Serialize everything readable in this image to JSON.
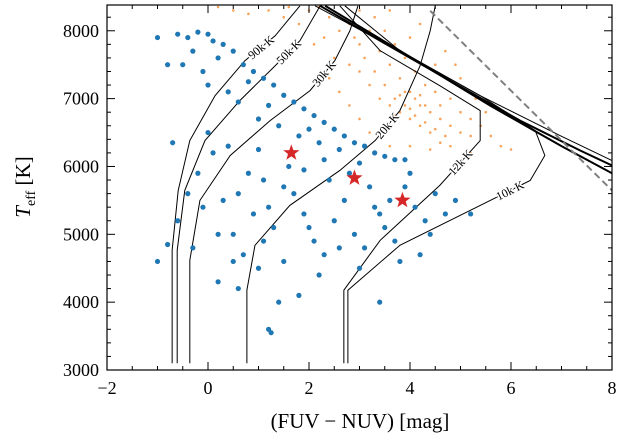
{
  "chart_data": {
    "type": "scatter",
    "xlabel": "(FUV − NUV) [mag]",
    "ylabel": [
      "T",
      "eff",
      " [K]"
    ],
    "xlim": [
      -2,
      8
    ],
    "ylim": [
      3000,
      8380
    ],
    "xticks": [
      {
        "value": -2,
        "label": "−2"
      },
      0,
      2,
      4,
      6,
      8
    ],
    "yticks": [
      3000,
      4000,
      5000,
      6000,
      7000,
      8000
    ],
    "xminorticks": [
      -1.5,
      -1,
      -0.5,
      0.5,
      1,
      1.5,
      2.5,
      3,
      3.5,
      4.5,
      5,
      5.5,
      6.5,
      7,
      7.5
    ],
    "yminorticks": [
      3200,
      3400,
      3600,
      3800,
      4200,
      4400,
      4600,
      4800,
      5200,
      5400,
      5600,
      5800,
      6200,
      6400,
      6600,
      6800,
      7200,
      7400,
      7600,
      7800,
      8200
    ],
    "series": [
      {
        "type": "scatter",
        "marker": "small-dot",
        "color": "#f7a35c",
        "x": [
          2.0,
          2.4,
          2.8,
          3.2,
          3.0,
          3.4,
          3.6,
          3.8,
          4.0,
          4.2,
          4.4,
          4.6,
          4.8,
          5.0,
          5.2,
          3.5,
          3.7,
          3.9,
          4.1,
          4.3,
          4.5,
          4.7,
          3.3,
          3.1,
          2.9,
          2.6,
          2.2,
          1.6,
          1.2,
          0.8,
          3.8,
          4.0,
          4.2,
          4.4,
          3.6,
          3.4,
          3.2,
          3.0,
          2.8,
          4.6,
          4.8,
          5.0,
          5.2,
          5.4,
          5.6,
          4.3,
          4.1,
          3.9,
          3.7,
          3.5,
          3.3,
          3.0,
          4.5,
          4.0,
          3.6,
          4.2,
          4.7,
          5.0,
          5.3,
          5.5,
          2.6,
          2.4,
          2.8,
          3.0,
          3.2,
          3.6,
          4.0,
          4.4,
          4.8,
          5.2,
          3.9,
          4.1,
          3.8,
          4.0,
          4.2,
          3.7,
          4.3,
          4.5,
          3.5,
          4.6,
          2.1,
          1.8,
          2.5,
          1.5,
          0.5,
          0.2,
          2.3,
          5.8,
          6.0,
          4.9
        ],
        "values": [
          8300,
          8200,
          8100,
          8000,
          7800,
          7700,
          7500,
          7300,
          7100,
          6900,
          6800,
          6700,
          6600,
          6500,
          6450,
          7200,
          7000,
          6900,
          6750,
          6650,
          6550,
          6450,
          7400,
          7600,
          7900,
          8000,
          8350,
          8350,
          8300,
          8250,
          6800,
          6700,
          6600,
          6500,
          6900,
          7000,
          7200,
          7400,
          7500,
          6900,
          7000,
          6800,
          6700,
          6600,
          6450,
          7200,
          7400,
          7600,
          7800,
          8000,
          8200,
          8300,
          7500,
          7900,
          8300,
          8100,
          7700,
          7300,
          7000,
          6800,
          7100,
          7300,
          6900,
          6700,
          6500,
          6300,
          6300,
          6250,
          6300,
          6200,
          7100,
          7000,
          7050,
          6850,
          7050,
          6750,
          6900,
          7100,
          6600,
          6350,
          7800,
          8100,
          7600,
          8200,
          8300,
          8350,
          7900,
          6300,
          6250,
          7500
        ]
      },
      {
        "type": "line",
        "style": "thin",
        "color": "#000000",
        "x": [
          -0.71,
          -0.71,
          -0.59,
          -0.36,
          0.14,
          0.73,
          1.33,
          1.82
        ],
        "values": [
          3100,
          4765,
          5647,
          6382,
          7044,
          7559,
          7926,
          8368
        ]
      },
      {
        "type": "line",
        "style": "thin",
        "color": "#000000",
        "x": [
          -0.61,
          -0.61,
          -0.46,
          -0.06,
          0.63,
          1.33,
          1.82,
          2.22
        ],
        "values": [
          3100,
          4765,
          5647,
          6382,
          6971,
          7485,
          7853,
          8368
        ]
      },
      {
        "type": "line",
        "style": "thin",
        "color": "#000000",
        "x": [
          -0.36,
          -0.36,
          -0.16,
          0.44,
          1.23,
          2.02,
          2.51,
          2.81,
          2.97
        ],
        "values": [
          3100,
          4618,
          5500,
          6162,
          6676,
          7118,
          7559,
          8000,
          8368
        ]
      },
      {
        "type": "line",
        "style": "thin",
        "color": "#000000",
        "x": [
          0.77,
          0.77,
          0.93,
          1.62,
          2.61,
          3.31,
          3.8,
          4.2,
          4.4,
          4.5
        ],
        "values": [
          3100,
          4176,
          4838,
          5426,
          5941,
          6382,
          6824,
          7485,
          8000,
          8368
        ]
      },
      {
        "type": "line",
        "style": "thin",
        "color": "#000000",
        "x": [
          2.69,
          2.69,
          3.41,
          4.59,
          5.39,
          5.39,
          4.59,
          3.41,
          2.61
        ],
        "values": [
          3100,
          4176,
          4912,
          5721,
          6382,
          6824,
          7191,
          7706,
          8368
        ]
      },
      {
        "type": "line",
        "style": "thin",
        "color": "#000000",
        "x": [
          2.77,
          2.77,
          3.8,
          5.39,
          6.38,
          6.67,
          6.48,
          5.39,
          3.8,
          2.71
        ],
        "values": [
          3100,
          4176,
          4838,
          5426,
          5794,
          6162,
          6529,
          7044,
          7706,
          8368
        ]
      },
      {
        "type": "line",
        "style": "thick",
        "color": "#000000",
        "x": [
          2.22,
          3.41,
          4.79,
          6.18,
          7.37,
          8
        ],
        "values": [
          8368,
          7853,
          7265,
          6676,
          6235,
          6015
        ]
      },
      {
        "type": "line",
        "style": "thin",
        "color": "#000000",
        "x": [
          2.12,
          3.6,
          5.39,
          6.97,
          8
        ],
        "values": [
          8368,
          7779,
          7044,
          6456,
          6088
        ]
      },
      {
        "type": "line",
        "style": "thick",
        "color": "#000000",
        "x": [
          2.32,
          3.8,
          5.58,
          7.0,
          8
        ],
        "values": [
          8368,
          7706,
          6900,
          6300,
          5900
        ]
      },
      {
        "type": "line",
        "style": "dashed",
        "color": "#808080",
        "x": [
          4.4,
          8
        ],
        "values": [
          8294,
          5647
        ]
      },
      {
        "type": "scatter",
        "marker": "dot",
        "color": "#1f77b4",
        "x": [
          -0.6,
          -0.4,
          -0.2,
          0,
          0.1,
          0.3,
          0.5,
          0.2,
          0.7,
          0.9,
          1.1,
          1.3,
          0.8,
          1.5,
          1.7,
          1.2,
          1.9,
          2.1,
          2.3,
          2.5,
          2.0,
          2.7,
          2.9,
          3.1,
          3.3,
          3.5,
          3.7,
          2.6,
          1.8,
          1.0,
          0.4,
          -0.1,
          -0.3,
          0.6,
          1.4,
          2.2,
          3.0,
          3.9,
          0.0,
          -0.5,
          -1.0,
          -0.8,
          -1.0,
          -0.8,
          -0.6,
          -0.4,
          -0.2,
          0.1,
          0.3,
          0.5,
          0.7,
          0.9,
          1.1,
          1.3,
          1.5,
          1.7,
          1.9,
          2.1,
          2.3,
          2.5,
          2.7,
          2.9,
          3.1,
          3.3,
          3.5,
          3.7,
          3.9,
          4.1,
          4.3,
          4.5,
          4.7,
          4.9,
          5.2,
          0.2,
          0.6,
          1.0,
          1.4,
          1.8,
          2.2,
          1.2,
          1.25,
          3.4,
          0.8,
          1.6,
          2.4,
          3.2,
          4.0,
          0.0,
          -0.7,
          -0.3,
          0.4,
          1.0,
          1.9,
          2.8,
          3.6,
          4.4,
          0.6,
          1.2,
          2.0,
          2.6,
          3.0,
          3.8,
          4.2,
          0.2,
          -0.1,
          1.5,
          2.3,
          3.4,
          1.1,
          0.5
        ],
        "values": [
          7950,
          7900,
          7980,
          7950,
          7850,
          7800,
          7700,
          7600,
          7500,
          7400,
          7300,
          7200,
          7250,
          7050,
          6950,
          6900,
          6850,
          6750,
          6650,
          6550,
          6550,
          6450,
          6350,
          6300,
          6200,
          6150,
          6100,
          6250,
          6450,
          6700,
          7100,
          7400,
          7700,
          6950,
          6600,
          6350,
          6050,
          6100,
          7200,
          7500,
          7900,
          7500,
          4600,
          4850,
          5200,
          5600,
          5900,
          6200,
          5500,
          5000,
          4700,
          5300,
          5800,
          5100,
          4600,
          5600,
          5300,
          4900,
          4700,
          5200,
          5500,
          5000,
          4800,
          5400,
          5100,
          4900,
          5700,
          5400,
          5200,
          5600,
          5300,
          5500,
          5300,
          4300,
          4200,
          4500,
          4000,
          4100,
          4400,
          3600,
          3550,
          4000,
          5900,
          6000,
          5800,
          5700,
          5900,
          6500,
          6350,
          4800,
          6300,
          6250,
          5950,
          5900,
          5500,
          5000,
          5600,
          5400,
          5100,
          4800,
          4500,
          4600,
          4700,
          5000,
          5400,
          5700,
          6100,
          5300,
          4900,
          4600
        ]
      },
      {
        "type": "scatter",
        "marker": "star",
        "color": "#d62728",
        "x": [
          1.65,
          2.9,
          3.85
        ],
        "values": [
          6200,
          5830,
          5500
        ]
      }
    ],
    "annotations": [
      {
        "text": "90k K",
        "x": 1.05,
        "y": 7755
      },
      {
        "text": "50k K",
        "x": 1.6,
        "y": 7690
      },
      {
        "text": "30k K",
        "x": 2.3,
        "y": 7370
      },
      {
        "text": "20k K",
        "x": 3.55,
        "y": 6600
      },
      {
        "text": "12k K",
        "x": 5.0,
        "y": 6060
      },
      {
        "text": "10k K",
        "x": 5.98,
        "y": 5645
      }
    ]
  }
}
